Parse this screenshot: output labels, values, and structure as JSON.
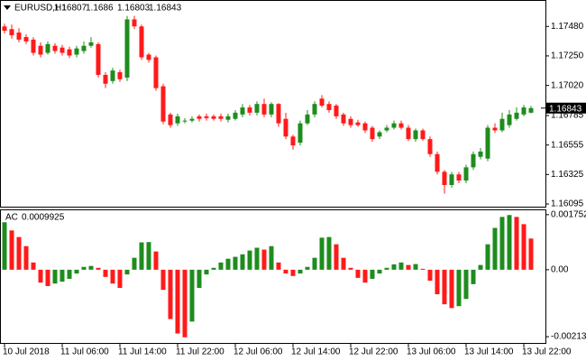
{
  "chart_data": [
    {
      "type": "candlestick",
      "title": "EURUSD,H1",
      "up_color": "#1e8c1e",
      "down_color": "#ff1a1a",
      "categories": [
        "10 Jul 2018",
        null,
        null,
        null,
        null,
        null,
        null,
        null,
        "11 Jul 06:00",
        null,
        null,
        null,
        null,
        null,
        null,
        null,
        "11 Jul 14:00",
        null,
        null,
        null,
        null,
        null,
        null,
        null,
        "11 Jul 22:00",
        null,
        null,
        null,
        null,
        null,
        null,
        null,
        "12 Jul 06:00",
        null,
        null,
        null,
        null,
        null,
        null,
        null,
        "12 Jul 14:00",
        null,
        null,
        null,
        null,
        null,
        null,
        null,
        "12 Jul 22:00",
        null,
        null,
        null,
        null,
        null,
        null,
        null,
        "13 Jul 06:00",
        null,
        null,
        null,
        null,
        null,
        null,
        null,
        "13 Jul 14:00",
        null,
        null,
        null,
        null,
        null,
        null,
        null,
        "13 Jul 22:00",
        null
      ],
      "open": [
        1.1748,
        1.17459,
        1.17432,
        1.17397,
        1.17377,
        1.17329,
        1.17274,
        1.17329,
        1.17315,
        1.17301,
        1.1726,
        1.17288,
        1.17329,
        1.17342,
        1.17102,
        1.17054,
        1.17123,
        1.17081,
        1.17535,
        1.1748,
        1.1726,
        1.17239,
        1.17013,
        1.16793,
        1.16724,
        1.16738,
        1.16745,
        1.16779,
        1.16779,
        1.16779,
        1.16779,
        1.16752,
        1.16759,
        1.16793,
        1.16848,
        1.16807,
        1.16875,
        1.16793,
        1.16875,
        1.16759,
        1.16621,
        1.16573,
        1.16724,
        1.16793,
        1.16917,
        1.16875,
        1.16862,
        1.16793,
        1.16759,
        1.16731,
        1.16724,
        1.1669,
        1.16621,
        1.16669,
        1.1669,
        1.16724,
        1.1669,
        1.16601,
        1.16669,
        1.16601,
        1.16484,
        1.16346,
        1.16243,
        1.16326,
        1.16278,
        1.16381,
        1.16463,
        1.16449,
        1.1669,
        1.16669,
        1.1671,
        1.16759,
        1.16793,
        1.16807
      ],
      "high": [
        1.17501,
        1.17494,
        1.17466,
        1.17418,
        1.17397,
        1.17356,
        1.17363,
        1.17349,
        1.17336,
        1.17322,
        1.17329,
        1.17363,
        1.17397,
        1.17356,
        1.17123,
        1.17157,
        1.17143,
        1.17562,
        1.17562,
        1.17494,
        1.17274,
        1.17253,
        1.17033,
        1.16807,
        1.168,
        1.16765,
        1.16779,
        1.16793,
        1.168,
        1.16793,
        1.168,
        1.168,
        1.16827,
        1.16875,
        1.16868,
        1.16896,
        1.16917,
        1.16889,
        1.16882,
        1.16807,
        1.16635,
        1.16745,
        1.16827,
        1.16896,
        1.16944,
        1.16896,
        1.16875,
        1.16807,
        1.16779,
        1.16752,
        1.16738,
        1.16704,
        1.16669,
        1.1671,
        1.16745,
        1.16745,
        1.1671,
        1.16683,
        1.16683,
        1.16621,
        1.16504,
        1.1636,
        1.16346,
        1.16346,
        1.16401,
        1.16504,
        1.16532,
        1.1671,
        1.16724,
        1.16807,
        1.16827,
        1.16848,
        1.16868,
        1.1686
      ],
      "low": [
        1.17425,
        1.17384,
        1.17356,
        1.17342,
        1.17253,
        1.17239,
        1.1726,
        1.17267,
        1.17253,
        1.17233,
        1.17239,
        1.17267,
        1.17315,
        1.17081,
        1.16999,
        1.17033,
        1.17047,
        1.17054,
        1.17459,
        1.17219,
        1.17198,
        1.16978,
        1.16717,
        1.1669,
        1.16704,
        1.16724,
        1.16731,
        1.16738,
        1.16745,
        1.16745,
        1.16738,
        1.16731,
        1.16745,
        1.16772,
        1.16786,
        1.16786,
        1.16772,
        1.16772,
        1.16697,
        1.16601,
        1.16518,
        1.16552,
        1.1671,
        1.16772,
        1.16848,
        1.16807,
        1.16759,
        1.16704,
        1.1669,
        1.16697,
        1.16649,
        1.1658,
        1.16601,
        1.16655,
        1.16676,
        1.16676,
        1.16587,
        1.1658,
        1.16587,
        1.16463,
        1.16326,
        1.16175,
        1.16223,
        1.16257,
        1.16257,
        1.1636,
        1.16443,
        1.16429,
        1.16649,
        1.16655,
        1.1669,
        1.16745,
        1.16779,
        1.16803
      ],
      "close": [
        1.17446,
        1.17411,
        1.17377,
        1.17363,
        1.17274,
        1.1726,
        1.17342,
        1.17288,
        1.17274,
        1.17253,
        1.17308,
        1.17329,
        1.17356,
        1.17102,
        1.17033,
        1.17136,
        1.17068,
        1.17535,
        1.1748,
        1.17239,
        1.17219,
        1.16999,
        1.16738,
        1.1671,
        1.16779,
        1.16745,
        1.16759,
        1.16759,
        1.16765,
        1.16759,
        1.16759,
        1.16779,
        1.16807,
        1.16848,
        1.16807,
        1.16875,
        1.16793,
        1.16875,
        1.16724,
        1.16621,
        1.16552,
        1.16724,
        1.16793,
        1.16875,
        1.16862,
        1.16827,
        1.16779,
        1.16724,
        1.1671,
        1.1671,
        1.16669,
        1.16601,
        1.16655,
        1.1669,
        1.16724,
        1.1669,
        1.16601,
        1.16669,
        1.16601,
        1.16484,
        1.16346,
        1.16243,
        1.16326,
        1.16278,
        1.16381,
        1.16484,
        1.16504,
        1.1669,
        1.16669,
        1.16759,
        1.16793,
        1.16807,
        1.16848,
        1.16843
      ],
      "ylim": [
        1.16074,
        1.17672
      ],
      "yticks": [
        {
          "value": 1.1748,
          "label": "1.17480"
        },
        {
          "value": 1.1725,
          "label": "1.17250"
        },
        {
          "value": 1.1702,
          "label": "1.17020"
        },
        {
          "value": 1.16785,
          "label": "1.16785"
        },
        {
          "value": 1.16555,
          "label": "1.16555"
        },
        {
          "value": 1.16325,
          "label": "1.16325"
        },
        {
          "value": 1.16095,
          "label": "1.16095"
        }
      ]
    },
    {
      "type": "bar",
      "title": "AC",
      "up_color": "#1e8c1e",
      "down_color": "#ff1a1a",
      "values": [
        0.00151,
        0.00125,
        0.00104,
        0.00075,
        0.00023,
        -0.00041,
        -0.00052,
        -0.00044,
        -0.00038,
        -0.00029,
        -0.00012,
        9e-05,
        0.00012,
        6e-05,
        -0.00023,
        -0.00044,
        -0.00058,
        -0.00015,
        0.00038,
        0.00087,
        0.00088,
        0.00058,
        -0.00064,
        -0.00157,
        -0.00203,
        -0.00215,
        -0.00165,
        -0.00058,
        -0.00015,
        6e-05,
        0.00023,
        0.00035,
        0.00041,
        0.00049,
        0.00061,
        0.0007,
        0.00064,
        0.00075,
        0.00023,
        -0.00012,
        -0.0002,
        -0.00012,
        9e-05,
        0.00038,
        0.00102,
        0.00104,
        0.00081,
        0.00038,
        6e-05,
        -0.00026,
        -0.00041,
        -0.00029,
        -0.00012,
        6e-05,
        0.00017,
        0.00023,
        0.00015,
        0.00018,
        3e-05,
        -0.00035,
        -0.00078,
        -0.0011,
        -0.00122,
        -0.00116,
        -0.00093,
        -0.00046,
        0.00015,
        0.00081,
        0.00133,
        0.00168,
        0.00174,
        0.00168,
        0.00145,
        0.0009925
      ],
      "ylim": [
        -0.00233,
        0.00192
      ],
      "yticks": [
        0.001752,
        {
          "value": 0,
          "label": "0.00"
        },
        -0.002131
      ]
    }
  ]
}
